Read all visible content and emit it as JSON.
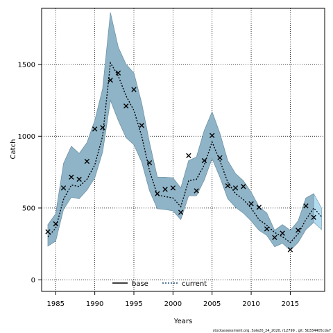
{
  "chart_data": {
    "type": "line",
    "xlabel": "Years",
    "ylabel": "Catch",
    "xlim": [
      1983.2,
      2019.4
    ],
    "ylim": [
      -80,
      1890
    ],
    "xticks": [
      1985,
      1990,
      1995,
      2000,
      2005,
      2010,
      2015
    ],
    "yticks": [
      0,
      500,
      1000,
      1500
    ],
    "grid": true,
    "legend_position": "bottom-center",
    "legend": [
      {
        "label": "base",
        "style": "solid",
        "color": "#000000"
      },
      {
        "label": "current",
        "style": "dotted",
        "color": "#1f4e79"
      }
    ],
    "footer": "stockassessment.org, Sole20_24_2020, r12799 , git: 5b334405cda7",
    "colors": {
      "band": "#8fb4c8",
      "band_stroke": "#6f93a6",
      "band_last": "#b3dbef",
      "line": "#000000"
    },
    "years": [
      1984,
      1985,
      1986,
      1987,
      1988,
      1989,
      1990,
      1991,
      1992,
      1993,
      1994,
      1995,
      1996,
      1997,
      1998,
      1999,
      2000,
      2001,
      2002,
      2003,
      2004,
      2005,
      2006,
      2007,
      2008,
      2009,
      2010,
      2011,
      2012,
      2013,
      2014,
      2015,
      2016,
      2017,
      2018,
      2019
    ],
    "observed": [
      335,
      390,
      640,
      715,
      700,
      825,
      1050,
      1060,
      1390,
      1440,
      1210,
      1325,
      1075,
      815,
      600,
      630,
      640,
      470,
      865,
      620,
      830,
      1005,
      850,
      655,
      640,
      650,
      530,
      505,
      355,
      295,
      325,
      210,
      345,
      515,
      435,
      null
    ],
    "fit": [
      300,
      360,
      560,
      660,
      650,
      700,
      800,
      1000,
      1510,
      1420,
      1280,
      1180,
      1000,
      760,
      590,
      580,
      570,
      510,
      690,
      700,
      800,
      960,
      830,
      680,
      600,
      560,
      500,
      420,
      380,
      330,
      300,
      260,
      320,
      420,
      500,
      440
    ],
    "lower": [
      235,
      270,
      490,
      575,
      565,
      625,
      710,
      890,
      1250,
      1110,
      990,
      940,
      820,
      620,
      495,
      490,
      480,
      420,
      585,
      585,
      695,
      845,
      715,
      565,
      505,
      465,
      410,
      345,
      310,
      230,
      255,
      205,
      260,
      350,
      400,
      350
    ],
    "upper": [
      385,
      460,
      810,
      930,
      880,
      955,
      1110,
      1330,
      1860,
      1620,
      1500,
      1440,
      1230,
      955,
      715,
      715,
      710,
      640,
      830,
      855,
      1040,
      1170,
      1020,
      830,
      740,
      690,
      610,
      510,
      465,
      345,
      385,
      345,
      410,
      570,
      600,
      500
    ]
  }
}
